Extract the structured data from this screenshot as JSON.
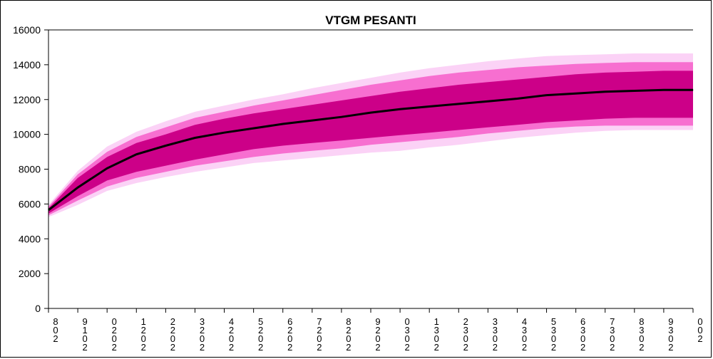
{
  "chart_data": {
    "type": "area",
    "title": "VTGM PESANTI",
    "ylim": [
      0,
      16000
    ],
    "yticks": [
      0,
      2000,
      4000,
      6000,
      8000,
      10000,
      12000,
      14000,
      16000
    ],
    "ytick_labels": [
      "0",
      "2000",
      "4000",
      "6000",
      "8000",
      "10000",
      "12000",
      "14000",
      "16000"
    ],
    "categories": [
      "8\n0\n2",
      "9\n1\n0\n2",
      "0\n2\n0\n2",
      "1\n2\n0\n2",
      "2\n2\n0\n2",
      "3\n2\n0\n2",
      "4\n2\n0\n2",
      "5\n2\n0\n2",
      "6\n2\n0\n2",
      "7\n2\n0\n2",
      "8\n2\n0\n2",
      "9\n2\n0\n2",
      "0\n3\n0\n2",
      "1\n3\n0\n2",
      "2\n3\n0\n2",
      "3\n3\n0\n2",
      "4\n3\n0\n2",
      "5\n3\n0\n2",
      "6\n3\n0\n2",
      "7\n3\n0\n2",
      "8\n3\n0\n2",
      "9\n3\n0\n2",
      "0\n0\n2"
    ],
    "central": [
      5650,
      6950,
      8050,
      8850,
      9350,
      9800,
      10100,
      10350,
      10600,
      10800,
      11000,
      11250,
      11450,
      11600,
      11750,
      11900,
      12050,
      12250,
      12350,
      12450,
      12500,
      12550,
      12550
    ],
    "bands": [
      {
        "name": "outer",
        "color": "#fbd2f6",
        "upper": [
          5950,
          7900,
          9300,
          10150,
          10750,
          11300,
          11650,
          12000,
          12300,
          12650,
          12950,
          13250,
          13550,
          13800,
          14000,
          14200,
          14350,
          14500,
          14550,
          14600,
          14650,
          14650,
          14650
        ],
        "lower": [
          5250,
          5950,
          6750,
          7200,
          7550,
          7850,
          8100,
          8350,
          8500,
          8650,
          8800,
          8950,
          9050,
          9250,
          9400,
          9600,
          9800,
          9950,
          10100,
          10200,
          10250,
          10250,
          10250
        ]
      },
      {
        "name": "middle",
        "color": "#f76fd0",
        "upper": [
          5850,
          7700,
          9000,
          9850,
          10400,
          10950,
          11300,
          11650,
          11950,
          12250,
          12550,
          12850,
          13100,
          13350,
          13550,
          13700,
          13850,
          13950,
          14050,
          14100,
          14150,
          14150,
          14150
        ],
        "lower": [
          5350,
          6200,
          7000,
          7500,
          7850,
          8200,
          8450,
          8700,
          8900,
          9050,
          9200,
          9400,
          9550,
          9700,
          9850,
          10050,
          10200,
          10350,
          10450,
          10500,
          10500,
          10500,
          10500
        ]
      },
      {
        "name": "inner",
        "color": "#cc0088",
        "upper": [
          5750,
          7500,
          8700,
          9500,
          10000,
          10550,
          10900,
          11200,
          11450,
          11700,
          11950,
          12200,
          12450,
          12650,
          12850,
          13000,
          13150,
          13300,
          13450,
          13550,
          13600,
          13650,
          13650
        ],
        "lower": [
          5450,
          6450,
          7350,
          7850,
          8200,
          8550,
          8850,
          9150,
          9350,
          9500,
          9650,
          9800,
          9950,
          10100,
          10250,
          10400,
          10550,
          10700,
          10800,
          10900,
          10950,
          10950,
          10950
        ]
      }
    ],
    "grid": false,
    "legend": "none",
    "colors": {
      "central_line": "#000000",
      "axis": "#000000"
    }
  }
}
